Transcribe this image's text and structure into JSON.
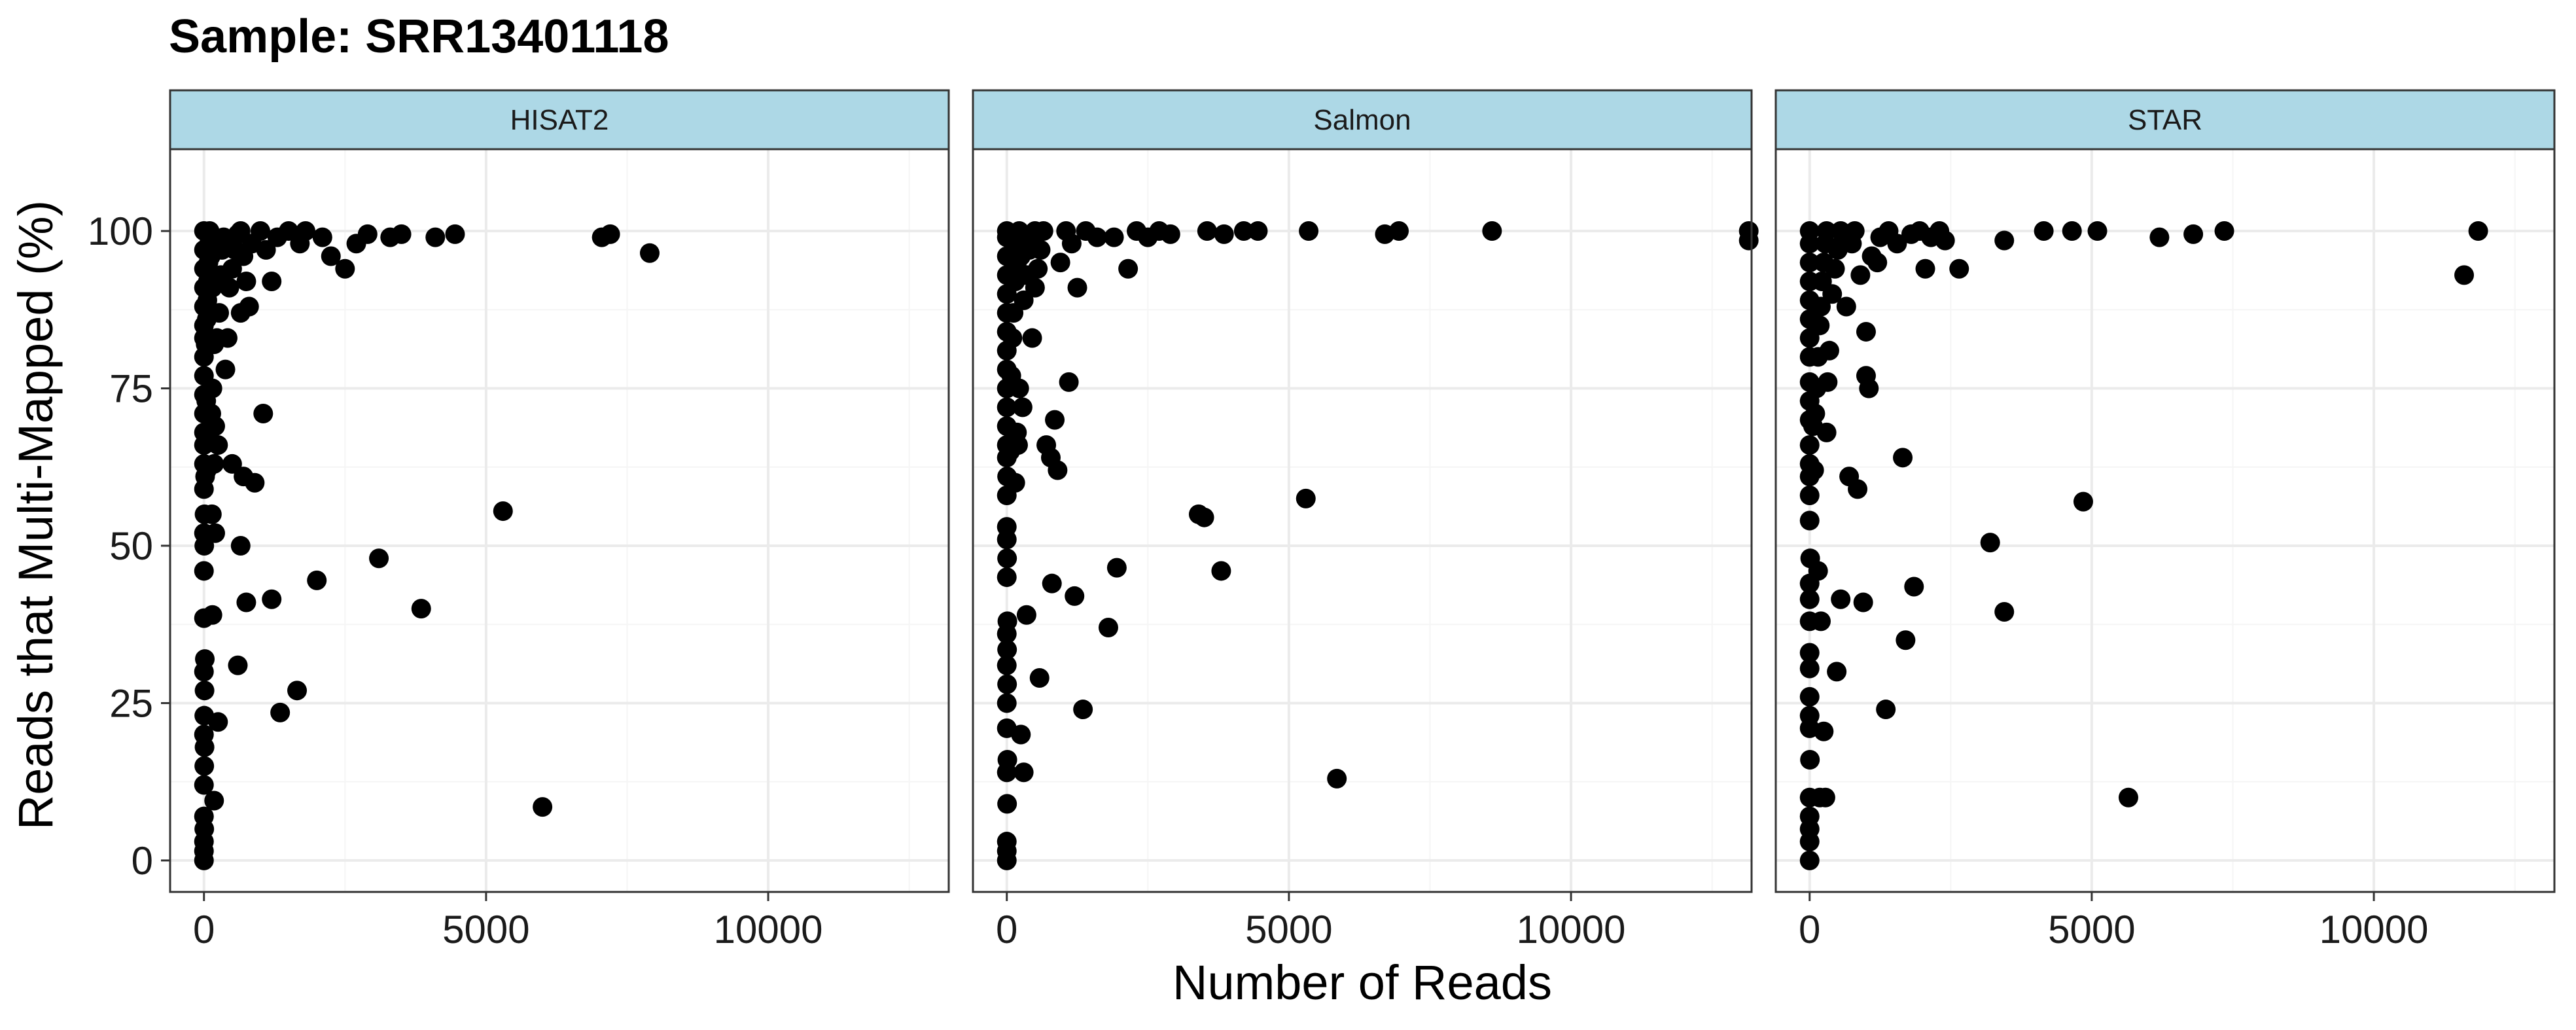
{
  "title": "Sample: SRR13401118",
  "chart_data": {
    "type": "scatter",
    "title": "Sample: SRR13401118",
    "xlabel": "Number of Reads",
    "ylabel": "Reads that Multi-Mapped (%)",
    "xlim": [
      -600,
      13200
    ],
    "ylim": [
      -5,
      113
    ],
    "x_ticks": [
      0,
      5000,
      10000
    ],
    "y_ticks": [
      0,
      25,
      50,
      75,
      100
    ],
    "grid": true,
    "colors": {
      "point": "#000000",
      "strip": "#add8e6",
      "grid_major": "#ebebeb",
      "grid_minor": "#f5f5f5",
      "border": "#333333"
    },
    "panels": [
      {
        "name": "HISAT2",
        "points": [
          [
            0,
            0
          ],
          [
            0,
            1.5
          ],
          [
            0,
            3
          ],
          [
            5,
            5
          ],
          [
            0,
            7
          ],
          [
            0,
            12
          ],
          [
            5,
            15
          ],
          [
            10,
            18
          ],
          [
            0,
            20
          ],
          [
            5,
            23
          ],
          [
            10,
            27
          ],
          [
            0,
            30
          ],
          [
            15,
            32
          ],
          [
            0,
            38.5
          ],
          [
            0,
            46
          ],
          [
            5,
            50
          ],
          [
            0,
            52
          ],
          [
            10,
            55
          ],
          [
            0,
            59
          ],
          [
            20,
            61
          ],
          [
            0,
            63
          ],
          [
            0,
            66
          ],
          [
            0,
            68
          ],
          [
            0,
            71
          ],
          [
            0,
            74
          ],
          [
            0,
            77
          ],
          [
            0,
            80
          ],
          [
            0,
            83
          ],
          [
            0,
            85
          ],
          [
            0,
            88
          ],
          [
            0,
            91
          ],
          [
            0,
            94
          ],
          [
            0,
            97
          ],
          [
            0,
            100
          ],
          [
            50,
            62
          ],
          [
            60,
            67
          ],
          [
            40,
            73
          ],
          [
            30,
            82
          ],
          [
            50,
            86
          ],
          [
            60,
            89
          ],
          [
            70,
            92
          ],
          [
            80,
            95
          ],
          [
            90,
            98
          ],
          [
            100,
            100
          ],
          [
            120,
            96
          ],
          [
            150,
            91
          ],
          [
            180,
            82
          ],
          [
            150,
            75
          ],
          [
            130,
            71
          ],
          [
            200,
            69
          ],
          [
            250,
            66
          ],
          [
            180,
            63
          ],
          [
            140,
            55
          ],
          [
            200,
            52
          ],
          [
            230,
            83
          ],
          [
            270,
            87
          ],
          [
            300,
            93
          ],
          [
            320,
            97
          ],
          [
            350,
            99
          ],
          [
            150,
            39
          ],
          [
            250,
            22
          ],
          [
            180,
            9.5
          ],
          [
            380,
            78
          ],
          [
            420,
            83
          ],
          [
            450,
            91
          ],
          [
            500,
            94
          ],
          [
            550,
            97
          ],
          [
            600,
            99.5
          ],
          [
            650,
            100
          ],
          [
            700,
            96
          ],
          [
            750,
            92
          ],
          [
            800,
            88
          ],
          [
            650,
            87
          ],
          [
            700,
            61
          ],
          [
            600,
            31
          ],
          [
            650,
            50
          ],
          [
            500,
            63
          ],
          [
            900,
            60
          ],
          [
            750,
            41
          ],
          [
            850,
            98
          ],
          [
            1000,
            100
          ],
          [
            1100,
            97
          ],
          [
            1050,
            71
          ],
          [
            1200,
            92
          ],
          [
            1200,
            41.5
          ],
          [
            1350,
            23.5
          ],
          [
            1300,
            99
          ],
          [
            1500,
            100
          ],
          [
            1650,
            27
          ],
          [
            1700,
            98
          ],
          [
            1800,
            100
          ],
          [
            2000,
            44.5
          ],
          [
            2100,
            99
          ],
          [
            2250,
            96
          ],
          [
            2500,
            94
          ],
          [
            2700,
            98
          ],
          [
            2900,
            99.5
          ],
          [
            3100,
            48
          ],
          [
            3300,
            99
          ],
          [
            3500,
            99.5
          ],
          [
            3850,
            40
          ],
          [
            4100,
            99
          ],
          [
            4450,
            99.5
          ],
          [
            5300,
            55.5
          ],
          [
            6000,
            8.5
          ],
          [
            7050,
            99
          ],
          [
            7200,
            99.5
          ],
          [
            7900,
            96.5
          ]
        ]
      },
      {
        "name": "Salmon",
        "points": [
          [
            0,
            0
          ],
          [
            0,
            1.5
          ],
          [
            0,
            3
          ],
          [
            5,
            9
          ],
          [
            0,
            14
          ],
          [
            10,
            16
          ],
          [
            0,
            21
          ],
          [
            0,
            25
          ],
          [
            5,
            28
          ],
          [
            0,
            31
          ],
          [
            5,
            33.5
          ],
          [
            0,
            36
          ],
          [
            10,
            38
          ],
          [
            0,
            45
          ],
          [
            5,
            48
          ],
          [
            0,
            51
          ],
          [
            0,
            53
          ],
          [
            0,
            58
          ],
          [
            5,
            61
          ],
          [
            0,
            64
          ],
          [
            0,
            66
          ],
          [
            0,
            69
          ],
          [
            0,
            72
          ],
          [
            0,
            75
          ],
          [
            0,
            78
          ],
          [
            0,
            81
          ],
          [
            0,
            84
          ],
          [
            0,
            87
          ],
          [
            0,
            90
          ],
          [
            0,
            93
          ],
          [
            0,
            96
          ],
          [
            0,
            99
          ],
          [
            0,
            100
          ],
          [
            60,
            65
          ],
          [
            80,
            77
          ],
          [
            100,
            83
          ],
          [
            120,
            87
          ],
          [
            150,
            92
          ],
          [
            180,
            95
          ],
          [
            200,
            98
          ],
          [
            220,
            100
          ],
          [
            250,
            96
          ],
          [
            150,
            60
          ],
          [
            200,
            66
          ],
          [
            180,
            68
          ],
          [
            220,
            75
          ],
          [
            280,
            72
          ],
          [
            300,
            89
          ],
          [
            350,
            93
          ],
          [
            400,
            97
          ],
          [
            450,
            99
          ],
          [
            500,
            100
          ],
          [
            550,
            94
          ],
          [
            250,
            20
          ],
          [
            300,
            14
          ],
          [
            350,
            39
          ],
          [
            450,
            83
          ],
          [
            500,
            91
          ],
          [
            600,
            97
          ],
          [
            650,
            100
          ],
          [
            580,
            29
          ],
          [
            700,
            66
          ],
          [
            780,
            64
          ],
          [
            800,
            44
          ],
          [
            850,
            70
          ],
          [
            900,
            62
          ],
          [
            950,
            95
          ],
          [
            1050,
            100
          ],
          [
            1100,
            76
          ],
          [
            1150,
            98
          ],
          [
            1200,
            42
          ],
          [
            1250,
            91
          ],
          [
            1350,
            24
          ],
          [
            1400,
            100
          ],
          [
            1600,
            99
          ],
          [
            1800,
            37
          ],
          [
            1900,
            99
          ],
          [
            1950,
            46.5
          ],
          [
            2150,
            94
          ],
          [
            2300,
            100
          ],
          [
            2500,
            99
          ],
          [
            2700,
            100
          ],
          [
            2900,
            99.5
          ],
          [
            3400,
            55
          ],
          [
            3500,
            54.5
          ],
          [
            3550,
            100
          ],
          [
            3800,
            46
          ],
          [
            3850,
            99.5
          ],
          [
            4200,
            100
          ],
          [
            4450,
            100
          ],
          [
            5300,
            57.5
          ],
          [
            5350,
            100
          ],
          [
            5850,
            13
          ],
          [
            6700,
            99.5
          ],
          [
            6950,
            100
          ],
          [
            8600,
            100
          ],
          [
            13150,
            100
          ],
          [
            13150,
            98.5
          ]
        ]
      },
      {
        "name": "STAR",
        "points": [
          [
            0,
            0
          ],
          [
            0,
            3
          ],
          [
            0,
            5
          ],
          [
            0,
            7
          ],
          [
            0,
            10
          ],
          [
            5,
            16
          ],
          [
            0,
            21
          ],
          [
            0,
            23
          ],
          [
            0,
            26
          ],
          [
            0,
            30.5
          ],
          [
            0,
            33
          ],
          [
            0,
            38
          ],
          [
            0,
            41.5
          ],
          [
            0,
            44
          ],
          [
            10,
            48
          ],
          [
            0,
            54
          ],
          [
            0,
            58
          ],
          [
            0,
            61
          ],
          [
            0,
            63
          ],
          [
            0,
            66
          ],
          [
            0,
            70
          ],
          [
            0,
            73
          ],
          [
            0,
            76
          ],
          [
            0,
            80
          ],
          [
            0,
            83
          ],
          [
            0,
            86
          ],
          [
            0,
            89
          ],
          [
            0,
            92
          ],
          [
            0,
            95
          ],
          [
            0,
            98
          ],
          [
            0,
            100
          ],
          [
            60,
            69
          ],
          [
            80,
            62
          ],
          [
            100,
            71
          ],
          [
            120,
            75
          ],
          [
            150,
            80
          ],
          [
            180,
            85
          ],
          [
            200,
            88
          ],
          [
            220,
            92
          ],
          [
            250,
            95
          ],
          [
            280,
            98
          ],
          [
            300,
            100
          ],
          [
            150,
            46
          ],
          [
            200,
            38
          ],
          [
            180,
            10
          ],
          [
            250,
            20.5
          ],
          [
            280,
            10
          ],
          [
            300,
            68
          ],
          [
            320,
            76
          ],
          [
            350,
            81
          ],
          [
            400,
            90
          ],
          [
            450,
            94
          ],
          [
            500,
            97
          ],
          [
            550,
            100
          ],
          [
            600,
            99
          ],
          [
            650,
            88
          ],
          [
            480,
            30
          ],
          [
            550,
            41.5
          ],
          [
            700,
            61
          ],
          [
            750,
            98
          ],
          [
            800,
            100
          ],
          [
            850,
            59
          ],
          [
            900,
            93
          ],
          [
            950,
            41
          ],
          [
            1000,
            84
          ],
          [
            1000,
            77
          ],
          [
            1050,
            75
          ],
          [
            1100,
            96
          ],
          [
            1200,
            95
          ],
          [
            1250,
            99
          ],
          [
            1350,
            24
          ],
          [
            1400,
            100
          ],
          [
            1550,
            98
          ],
          [
            1650,
            64
          ],
          [
            1700,
            35
          ],
          [
            1800,
            99.5
          ],
          [
            1850,
            43.5
          ],
          [
            1950,
            100
          ],
          [
            2050,
            94
          ],
          [
            2150,
            99
          ],
          [
            2300,
            100
          ],
          [
            2400,
            98.5
          ],
          [
            2650,
            94
          ],
          [
            3200,
            50.5
          ],
          [
            3450,
            98.5
          ],
          [
            3450,
            39.5
          ],
          [
            4150,
            100
          ],
          [
            4650,
            100
          ],
          [
            4850,
            57
          ],
          [
            5100,
            100
          ],
          [
            5650,
            10
          ],
          [
            6200,
            99
          ],
          [
            6800,
            99.5
          ],
          [
            7350,
            100
          ],
          [
            11600,
            93
          ],
          [
            11850,
            100
          ]
        ]
      }
    ]
  }
}
